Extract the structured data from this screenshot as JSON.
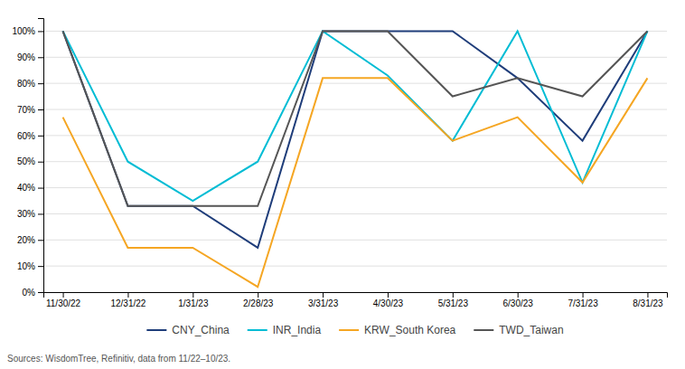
{
  "chart_data": {
    "type": "line",
    "categories": [
      "11/30/22",
      "12/31/22",
      "1/31/23",
      "2/28/23",
      "3/31/23",
      "4/30/23",
      "5/31/23",
      "6/30/23",
      "7/31/23",
      "8/31/23"
    ],
    "series": [
      {
        "name": "CNY_China",
        "color": "#1f3d7a",
        "values": [
          1.0,
          0.33,
          0.33,
          0.17,
          1.0,
          1.0,
          1.0,
          0.82,
          0.58,
          1.0
        ]
      },
      {
        "name": "INR_India",
        "color": "#00bcd4",
        "values": [
          1.0,
          0.5,
          0.35,
          0.5,
          1.0,
          0.83,
          0.58,
          1.0,
          0.42,
          1.0
        ]
      },
      {
        "name": "KRW_South Korea",
        "color": "#f5a623",
        "values": [
          0.67,
          0.17,
          0.17,
          0.02,
          0.82,
          0.82,
          0.58,
          0.67,
          0.42,
          0.82
        ]
      },
      {
        "name": "TWD_Taiwan",
        "color": "#555555",
        "values": [
          1.0,
          0.33,
          0.33,
          0.33,
          1.0,
          1.0,
          0.75,
          0.82,
          0.75,
          1.0
        ]
      }
    ],
    "ylim": [
      0,
      1.05
    ],
    "yticks": [
      {
        "value": 0.0,
        "label": "0%"
      },
      {
        "value": 0.1,
        "label": "10%"
      },
      {
        "value": 0.2,
        "label": "20%"
      },
      {
        "value": 0.3,
        "label": "30%"
      },
      {
        "value": 0.4,
        "label": "40%"
      },
      {
        "value": 0.5,
        "label": "50%"
      },
      {
        "value": 0.6,
        "label": "60%"
      },
      {
        "value": 0.7,
        "label": "70%"
      },
      {
        "value": 0.8,
        "label": "80%"
      },
      {
        "value": 0.9,
        "label": "90%"
      },
      {
        "value": 1.0,
        "label": "100%"
      }
    ],
    "grid": true,
    "legend": "bottom",
    "annotations": [
      "Sources: WisdomTree, Refinitiv, data from 11/22–10/23."
    ]
  }
}
